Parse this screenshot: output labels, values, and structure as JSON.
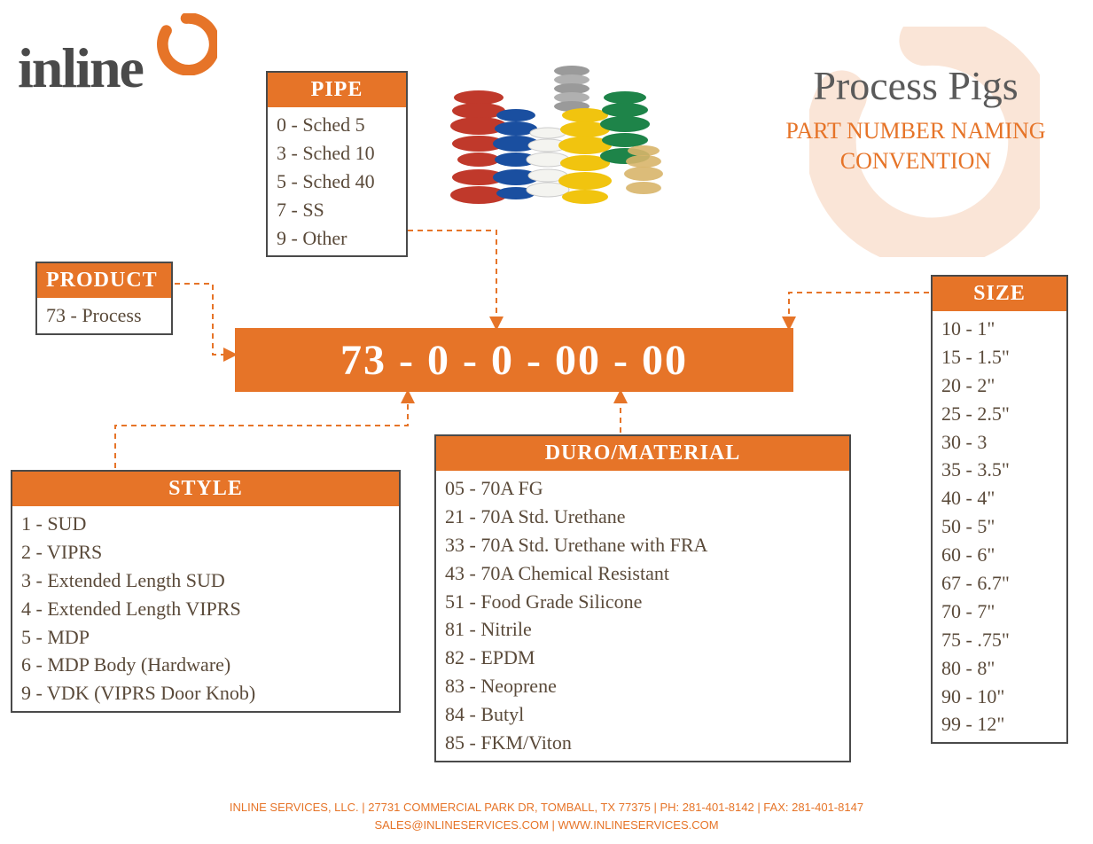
{
  "colors": {
    "accent": "#e67428",
    "text_dark": "#4a4a4a",
    "text_body": "#5a4a3a",
    "border": "#4a4a4a",
    "background": "#ffffff"
  },
  "logo": {
    "text": "inline"
  },
  "title": {
    "main": "Process Pigs",
    "sub": "PART NUMBER NAMING CONVENTION"
  },
  "part_number": "73 - 0 - 0 - 00 - 00",
  "boxes": {
    "product": {
      "header": "PRODUCT",
      "items": [
        "73 - Process"
      ]
    },
    "pipe": {
      "header": "PIPE",
      "items": [
        "0 - Sched 5",
        "3 - Sched 10",
        "5 - Sched 40",
        "7 - SS",
        "9 - Other"
      ]
    },
    "size": {
      "header": "SIZE",
      "items": [
        "10 - 1\"",
        "15 - 1.5\"",
        "20 - 2\"",
        "25 - 2.5\"",
        "30 - 3",
        "35 - 3.5\"",
        "40 - 4\"",
        "50 - 5\"",
        "60 - 6\"",
        "67 - 6.7\"",
        "70 - 7\"",
        "75 - .75\"",
        "80 - 8\"",
        "90 - 10\"",
        "99 - 12\""
      ]
    },
    "style": {
      "header": "STYLE",
      "items": [
        "1 - SUD",
        "2 - VIPRS",
        "3 - Extended Length SUD",
        "4 - Extended Length VIPRS",
        "5 - MDP",
        "6 - MDP Body (Hardware)",
        "9 - VDK (VIPRS Door Knob)"
      ]
    },
    "material": {
      "header": "DURO/MATERIAL",
      "items": [
        "05 - 70A FG",
        "21 - 70A Std. Urethane",
        "33 - 70A Std. Urethane with FRA",
        "43 - 70A Chemical Resistant",
        "51 - Food Grade Silicone",
        "81 - Nitrile",
        "82 - EPDM",
        "83 - Neoprene",
        "84 - Butyl",
        "85 - FKM/Viton"
      ]
    }
  },
  "footer": {
    "line1": "INLINE SERVICES, LLC. | 27731 COMMERCIAL PARK DR, TOMBALL, TX 77375 | PH: 281-401-8142 | FAX: 281-401-8147",
    "line2": "SALES@INLINESERVICES.COM | WWW.INLINESERVICES.COM"
  },
  "product_photo_colors": [
    "#c0392b",
    "#1a4fa0",
    "#f4f4f0",
    "#f1c40f",
    "#7a7a7a",
    "#1e8449",
    "#d8b56a"
  ]
}
